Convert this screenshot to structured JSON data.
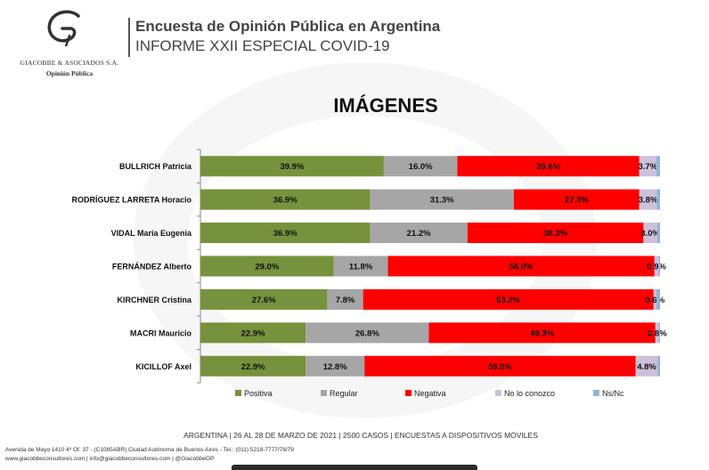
{
  "header": {
    "logo_name": "GIACOBBE & ASOCIADOS S.A.",
    "logo_sub": "Opinión Pública",
    "title": "Encuesta de Opinión Pública en Argentina",
    "subtitle": "INFORME XXII ESPECIAL COVID-19"
  },
  "chart_data": {
    "type": "bar",
    "orientation": "horizontal",
    "stacked": true,
    "title": "IMÁGENES",
    "categories": [
      "BULLRICH Patricia",
      "RODRÍGUEZ LARRETA Horacio",
      "VIDAL María Eugenia",
      "FERNÁNDEZ Alberto",
      "KIRCHNER Cristina",
      "MACRI Mauricio",
      "KICILLOF Axel"
    ],
    "series": [
      {
        "name": "Positiva",
        "color": "#76923c",
        "values": [
          39.9,
          36.9,
          36.9,
          29.0,
          27.6,
          22.9,
          22.9
        ]
      },
      {
        "name": "Regular",
        "color": "#a6a6a6",
        "values": [
          16.0,
          31.3,
          21.2,
          11.8,
          7.8,
          26.8,
          12.8
        ]
      },
      {
        "name": "Negativa",
        "color": "#ff0000",
        "values": [
          39.6,
          27.3,
          38.3,
          58.0,
          63.2,
          49.3,
          59.0
        ]
      },
      {
        "name": "No lo conozco",
        "color": "#ccc0da",
        "values": [
          3.7,
          3.8,
          3.0,
          0.9,
          0.6,
          0.8,
          4.8
        ]
      },
      {
        "name": "Ns/Nc",
        "color": "#95b3d7",
        "values": [
          0.8,
          0.7,
          0.6,
          0.3,
          0.8,
          0.2,
          0.5
        ]
      }
    ],
    "labels": [
      [
        "39.9%",
        "16.0%",
        "39.6%",
        "3.7%"
      ],
      [
        "36.9%",
        "31.3%",
        "27.3%",
        "3.8%"
      ],
      [
        "36.9%",
        "21.2%",
        "38.3%",
        "3.0%"
      ],
      [
        "29.0%",
        "11.8%",
        "58.0%",
        "0.9%"
      ],
      [
        "27.6%",
        "7.8%",
        "63.2%",
        "0.6%"
      ],
      [
        "22.9%",
        "26.8%",
        "49.3%",
        "0.8%"
      ],
      [
        "22.9%",
        "12.8%",
        "59.0%",
        "4.8%"
      ]
    ],
    "xlim": [
      0,
      100
    ],
    "legend_position": "bottom",
    "grid": false
  },
  "footer": {
    "survey_info": "ARGENTINA | 26 AL 28 DE MARZO DE 2021 | 2500 CASOS | ENCUESTAS A DISPOSITIVOS MÓVILES",
    "address": "Avenida de Mayo 1410 4º Of. 37 - (C1085ABR) Ciudad Autónoma de Buenos Aires - Tel.: (011) 5218-7777/78/79",
    "web": "www.giacobbeconsultores.com | info@giacobbeconsultores.com | @GiacobbeOP"
  }
}
